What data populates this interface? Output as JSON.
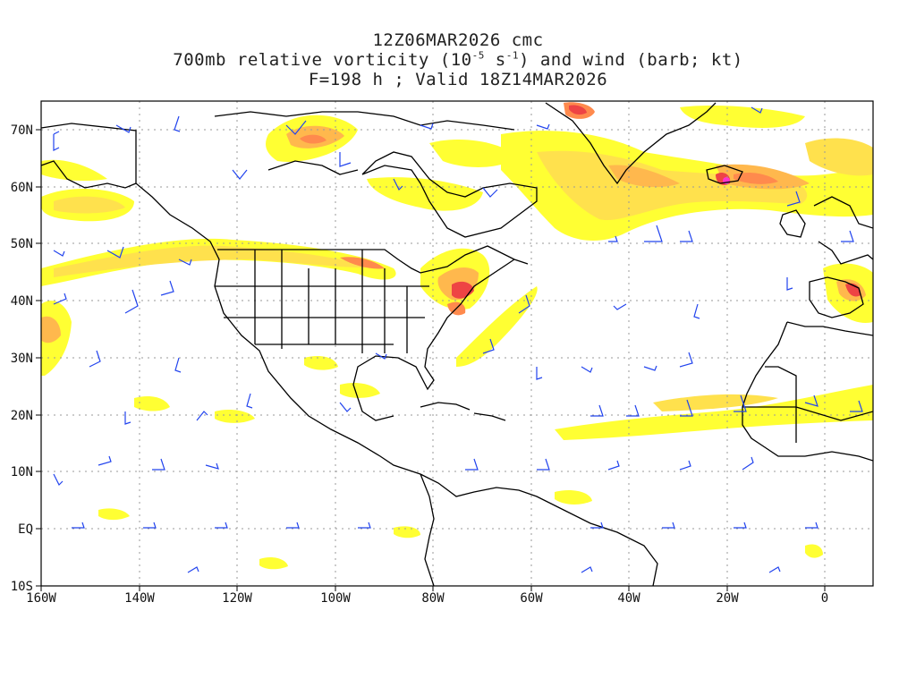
{
  "title": {
    "line1": "12Z06MAR2026 cmc",
    "line2_pre": "700mb relative vorticity (10",
    "line2_exp1": "-5",
    "line2_mid": " s",
    "line2_exp2": "-1",
    "line2_post": ") and wind (barb; kt)",
    "line3": "F=198 h ; Valid 18Z14MAR2026"
  },
  "map": {
    "projection": "cylindrical equidistant",
    "lon_range": [
      -160,
      10
    ],
    "lat_range": [
      -10,
      75
    ],
    "grid": "dotted",
    "colors": {
      "vort_low": "#ffff33",
      "vort_mid": "#ffe14d",
      "vort_high": "#ffb84d",
      "vort_higher": "#ff8a4d",
      "vort_max": "#ee4444",
      "vort_peak": "#ff33cc",
      "barbs": "#2244ee",
      "coast": "#000000"
    }
  },
  "axes": {
    "lat_labels": [
      "70N",
      "60N",
      "50N",
      "40N",
      "30N",
      "20N",
      "10N",
      "EQ",
      "10S"
    ],
    "lon_labels": [
      "160W",
      "140W",
      "120W",
      "100W",
      "80W",
      "60W",
      "40W",
      "20W",
      "0"
    ]
  }
}
